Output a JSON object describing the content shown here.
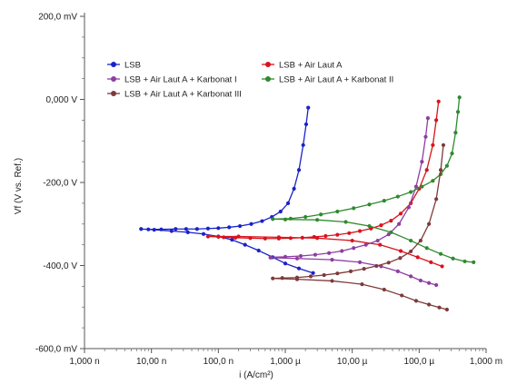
{
  "chart_data": {
    "type": "line",
    "title": "",
    "xlabel": "i (A/cm²)",
    "ylabel": "Vf (V vs. Ref.)",
    "x_scale": "log",
    "x_unit": "A/cm²",
    "y_unit": "mV",
    "xlim": [
      1e-09,
      0.001
    ],
    "ylim": [
      -600,
      200
    ],
    "x_ticks": [
      {
        "value": 1e-09,
        "label": "1,000 n"
      },
      {
        "value": 1e-08,
        "label": "10,00 n"
      },
      {
        "value": 1e-07,
        "label": "100,0 n"
      },
      {
        "value": 1e-06,
        "label": "1,000 µ"
      },
      {
        "value": 1e-05,
        "label": "10,00 µ"
      },
      {
        "value": 0.0001,
        "label": "100,0 µ"
      },
      {
        "value": 0.001,
        "label": "1,000 m"
      }
    ],
    "y_ticks": [
      {
        "value": 200,
        "label": "200,0 mV"
      },
      {
        "value": 0,
        "label": "0,000 V"
      },
      {
        "value": -200,
        "label": "-200,0 V"
      },
      {
        "value": -400,
        "label": "-400,0 V"
      },
      {
        "value": -600,
        "label": "-600,0 mV"
      }
    ],
    "legend_position": "top-left",
    "series": [
      {
        "name": "LSB",
        "color": "#1a22c9",
        "x": [
          2.2e-06,
          2.05e-06,
          1.85e-06,
          1.6e-06,
          1.35e-06,
          1.1e-06,
          8.5e-07,
          6.3e-07,
          4.5e-07,
          3.1e-07,
          2.1e-07,
          1.45e-07,
          1e-07,
          7e-08,
          4.8e-08,
          3.3e-08,
          2.3e-08,
          1.4e-08,
          9e-09,
          7e-09,
          1.1e-08,
          2e-08,
          3.5e-08,
          6e-08,
          1e-07,
          1.6e-07,
          2.5e-07,
          4e-07,
          6.5e-07,
          1e-06,
          1.6e-06,
          2.6e-06
        ],
        "y": [
          -20,
          -60,
          -110,
          -170,
          -215,
          -250,
          -270,
          -283,
          -293,
          -300,
          -305,
          -308,
          -310,
          -311,
          -312,
          -312,
          -312,
          -313,
          -313,
          -312,
          -314,
          -317,
          -320,
          -324,
          -330,
          -338,
          -350,
          -364,
          -380,
          -395,
          -407,
          -418
        ]
      },
      {
        "name": "LSB + Air Laut A",
        "color": "#d9131c",
        "x": [
          0.000195,
          0.00018,
          0.00016,
          0.00013,
          0.0001,
          7.5e-05,
          5.3e-05,
          3.8e-05,
          2.7e-05,
          1.9e-05,
          1.3e-05,
          9e-06,
          6e-06,
          4e-06,
          2.7e-06,
          1.8e-06,
          1.2e-06,
          8e-07,
          5e-07,
          3e-07,
          1.8e-07,
          1.2e-07,
          1e-07,
          7e-08,
          2e-07,
          8e-07,
          3e-06,
          1e-05,
          2.6e-05,
          5.3e-05,
          9.5e-05,
          0.00015,
          0.00022
        ],
        "y": [
          -5,
          -50,
          -110,
          -170,
          -215,
          -250,
          -275,
          -292,
          -303,
          -311,
          -317,
          -322,
          -326,
          -329,
          -331,
          -333,
          -334,
          -335,
          -335,
          -334,
          -333,
          -332,
          -331,
          -330,
          -330,
          -332,
          -334,
          -340,
          -350,
          -365,
          -380,
          -392,
          -402
        ]
      },
      {
        "name": "LSB + Air Laut A + Karbonat I",
        "color": "#8e3da2",
        "x": [
          0.000135,
          0.000125,
          0.00011,
          9e-05,
          7e-05,
          5e-05,
          3.5e-05,
          2.4e-05,
          1.6e-05,
          1.05e-05,
          7e-06,
          4.5e-06,
          2.8e-06,
          1.7e-06,
          1e-06,
          6e-07,
          6e-07,
          1.5e-06,
          5e-06,
          1.3e-05,
          2.7e-05,
          4.8e-05,
          7.5e-05,
          0.000105,
          0.00014,
          0.00018
        ],
        "y": [
          -45,
          -90,
          -150,
          -210,
          -260,
          -300,
          -325,
          -340,
          -350,
          -358,
          -365,
          -370,
          -374,
          -377,
          -379,
          -380,
          -381,
          -383,
          -386,
          -392,
          -402,
          -414,
          -426,
          -436,
          -442,
          -447
        ]
      },
      {
        "name": "LSB + Air Laut A + Karbonat II",
        "color": "#2e8a2e",
        "x": [
          0.0004,
          0.00038,
          0.00035,
          0.00031,
          0.00026,
          0.00021,
          0.00016,
          0.00011,
          7.5e-05,
          4.8e-05,
          3e-05,
          1.8e-05,
          1.05e-05,
          6e-06,
          3.4e-06,
          2e-06,
          1.2e-06,
          6.5e-07,
          1e-06,
          3e-06,
          8e-06,
          1.8e-05,
          3.8e-05,
          7.5e-05,
          0.00013,
          0.00021,
          0.00032,
          0.00048,
          0.00065
        ],
        "y": [
          5,
          -30,
          -80,
          -130,
          -160,
          -180,
          -196,
          -210,
          -223,
          -234,
          -244,
          -253,
          -262,
          -270,
          -277,
          -283,
          -287,
          -288,
          -289,
          -290,
          -295,
          -305,
          -320,
          -340,
          -358,
          -372,
          -383,
          -390,
          -392
        ]
      },
      {
        "name": "LSB + Air Laut A + Karbonat III",
        "color": "#7d3a3a",
        "x": [
          0.00023,
          0.00021,
          0.00018,
          0.00014,
          0.000105,
          7.5e-05,
          5.2e-05,
          3.5e-05,
          2.3e-05,
          1.5e-05,
          9.5e-06,
          6e-06,
          3.8e-06,
          2.4e-06,
          1.5e-06,
          9e-07,
          6.5e-07,
          1.5e-06,
          5e-06,
          1.4e-05,
          3e-05,
          5.5e-05,
          9e-05,
          0.00014,
          0.0002,
          0.00026
        ],
        "y": [
          -110,
          -170,
          -240,
          -300,
          -340,
          -366,
          -382,
          -393,
          -401,
          -408,
          -414,
          -419,
          -423,
          -426,
          -429,
          -430,
          -431,
          -433,
          -437,
          -445,
          -458,
          -472,
          -485,
          -494,
          -501,
          -506
        ]
      }
    ]
  }
}
